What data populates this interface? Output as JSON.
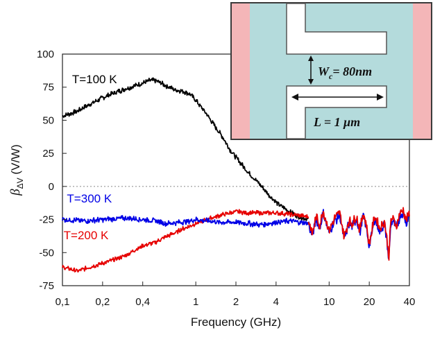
{
  "chart_data": {
    "type": "line",
    "title": "",
    "xlabel": "Frequency (GHz)",
    "ylabel": {
      "symbol": "β",
      "subscript": "ΔV",
      "unit": " (V/W)"
    },
    "xscale": "log",
    "xlim": [
      0.1,
      40
    ],
    "ylim": [
      -75,
      100
    ],
    "xticks": [
      {
        "value": 0.1,
        "label": "0,1"
      },
      {
        "value": 0.2,
        "label": "0,2"
      },
      {
        "value": 0.4,
        "label": "0,4"
      },
      {
        "value": 1,
        "label": "1"
      },
      {
        "value": 2,
        "label": "2"
      },
      {
        "value": 4,
        "label": "4"
      },
      {
        "value": 10,
        "label": "10"
      },
      {
        "value": 20,
        "label": "20"
      },
      {
        "value": 40,
        "label": "40"
      }
    ],
    "yticks": [
      {
        "value": 100,
        "label": "100"
      },
      {
        "value": 75,
        "label": "75"
      },
      {
        "value": 50,
        "label": "50"
      },
      {
        "value": 25,
        "label": "25"
      },
      {
        "value": 0,
        "label": "0"
      },
      {
        "value": -25,
        "label": "-25"
      },
      {
        "value": -50,
        "label": "-50"
      },
      {
        "value": -75,
        "label": "-75"
      }
    ],
    "zero_line": "dotted",
    "grid": false,
    "series": [
      {
        "name": "T=100 K",
        "color": "#000000",
        "noise": 2.0,
        "x": [
          0.1,
          0.13,
          0.16,
          0.2,
          0.25,
          0.3,
          0.35,
          0.4,
          0.45,
          0.5,
          0.55,
          0.6,
          0.7,
          0.8,
          0.9,
          1.0,
          1.2,
          1.4,
          1.6,
          1.8,
          2.0,
          2.5,
          3.0,
          3.5,
          4.0,
          5.0,
          6.0,
          7.0
        ],
        "y": [
          53,
          57,
          62,
          67,
          71,
          74,
          76,
          78,
          80,
          80,
          78,
          76,
          73,
          72,
          70,
          65,
          55,
          45,
          37,
          28,
          22,
          10,
          2,
          -6,
          -12,
          -19,
          -23,
          -25
        ]
      },
      {
        "name": "T=200 K",
        "color": "#e60000",
        "noise": 1.8,
        "x": [
          0.1,
          0.13,
          0.16,
          0.2,
          0.25,
          0.3,
          0.35,
          0.4,
          0.5,
          0.6,
          0.7,
          0.8,
          0.9,
          1.0,
          1.2,
          1.5,
          1.8,
          2.0,
          2.5,
          3.0,
          4.0,
          5.0,
          6.0,
          7.0
        ],
        "y": [
          -61,
          -64,
          -61,
          -58,
          -55,
          -52,
          -48,
          -45,
          -42,
          -38,
          -35,
          -32,
          -30,
          -28,
          -25,
          -22,
          -20,
          -19,
          -20,
          -20,
          -20,
          -21,
          -22,
          -23
        ]
      },
      {
        "name": "T=300 K",
        "color": "#0000e6",
        "noise": 2.2,
        "x": [
          0.1,
          0.15,
          0.2,
          0.3,
          0.4,
          0.5,
          0.6,
          0.8,
          1.0,
          1.2,
          1.5,
          2.0,
          2.5,
          3.0,
          4.0,
          5.0,
          6.0,
          7.0
        ],
        "y": [
          -25,
          -26,
          -25,
          -24,
          -25,
          -26,
          -28,
          -27,
          -25,
          -26,
          -27,
          -27,
          -28,
          -29,
          -27,
          -26,
          -27,
          -28
        ]
      },
      {
        "name": "",
        "color": "#0000e6",
        "noise": 4.0,
        "x": [
          7.0,
          7.5,
          8.0,
          8.5,
          9.0,
          10.0,
          11.0,
          12.0,
          13.0,
          14.0,
          15.0,
          16.0,
          17.0,
          18.0,
          19.0,
          20.0,
          22.0,
          24.0,
          26.0,
          27.0,
          28.0,
          29.0,
          30.0,
          32.0,
          34.0,
          36.0,
          38.0,
          40.0
        ],
        "y": [
          -28,
          -38,
          -24,
          -32,
          -20,
          -35,
          -26,
          -22,
          -40,
          -28,
          -30,
          -24,
          -35,
          -22,
          -30,
          -46,
          -24,
          -34,
          -28,
          -40,
          -56,
          -28,
          -26,
          -32,
          -22,
          -20,
          -28,
          -21
        ]
      },
      {
        "name": "",
        "color": "#e60000",
        "noise": 4.0,
        "x": [
          7.0,
          7.5,
          8.0,
          8.5,
          9.0,
          10.0,
          11.0,
          12.0,
          13.0,
          14.0,
          15.0,
          16.0,
          17.0,
          18.0,
          19.0,
          20.0,
          22.0,
          24.0,
          26.0,
          27.0,
          28.0,
          29.0,
          30.0,
          32.0,
          34.0,
          36.0,
          38.0,
          40.0
        ],
        "y": [
          -26,
          -36,
          -22,
          -30,
          -18,
          -33,
          -24,
          -20,
          -38,
          -26,
          -28,
          -22,
          -33,
          -20,
          -28,
          -44,
          -22,
          -32,
          -26,
          -38,
          -54,
          -26,
          -24,
          -30,
          -20,
          -18,
          -26,
          -19
        ]
      }
    ],
    "annotations": [
      {
        "text": "T=100 K",
        "color": "#000000",
        "x": 0.118,
        "y": 78
      },
      {
        "text": "T=300 K",
        "color": "#0000e6",
        "x": 0.108,
        "y": -12
      },
      {
        "text": "T=200 K",
        "color": "#e60000",
        "x": 0.102,
        "y": -40
      }
    ],
    "inset": {
      "type": "device schematic",
      "width_label": "Wc = 80nm",
      "width_label_parts": [
        "W",
        "c",
        "= 80nm"
      ],
      "length_label": "L = 1 μm",
      "colors": {
        "edge": "#f4b6b8",
        "channel": "#b4dbdc",
        "metal": "#ffffff",
        "border": "#3a3a3a"
      }
    }
  }
}
